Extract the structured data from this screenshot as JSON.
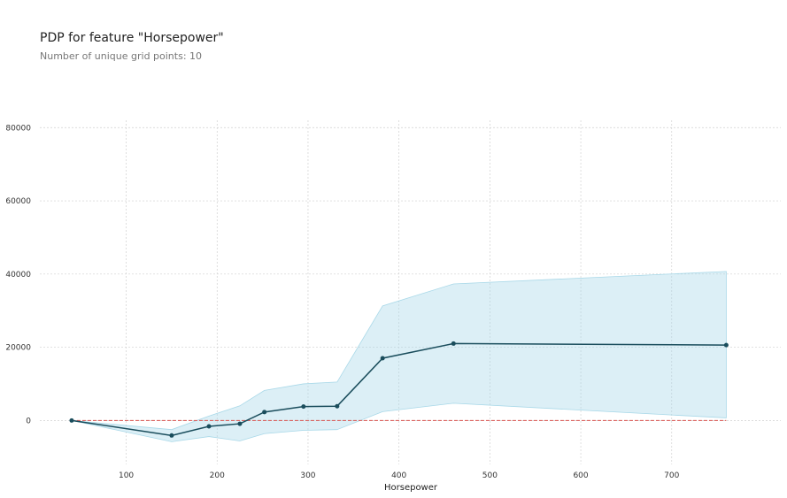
{
  "chart_data": {
    "type": "line",
    "title": "PDP for feature \"Horsepower\"",
    "subtitle": "Number of unique grid points: 10",
    "xlabel": "Horsepower",
    "ylabel": "",
    "xlim": [
      5,
      820
    ],
    "ylim": [
      -12000,
      82000
    ],
    "x_ticks": [
      100,
      200,
      300,
      400,
      500,
      600,
      700
    ],
    "y_ticks": [
      0,
      20000,
      40000,
      60000,
      80000
    ],
    "grid": true,
    "series": [
      {
        "x": [
          40,
          150,
          191,
          225,
          252,
          295,
          332,
          382,
          460,
          760
        ],
        "values": [
          0,
          -4100,
          -1600,
          -900,
          2300,
          3800,
          3900,
          17000,
          21000,
          20600
        ],
        "upper": [
          0,
          -2500,
          1200,
          4000,
          8200,
          10000,
          10500,
          31300,
          37300,
          40700
        ],
        "lower": [
          0,
          -5800,
          -4400,
          -5600,
          -3600,
          -2700,
          -2500,
          2400,
          4700,
          700
        ]
      }
    ],
    "reference_line": {
      "y": 0
    },
    "colors": {
      "line": "#1a4d5c",
      "band": "#a8d8e8",
      "reference": "#d9534f",
      "grid": "#d0d0d0"
    }
  }
}
